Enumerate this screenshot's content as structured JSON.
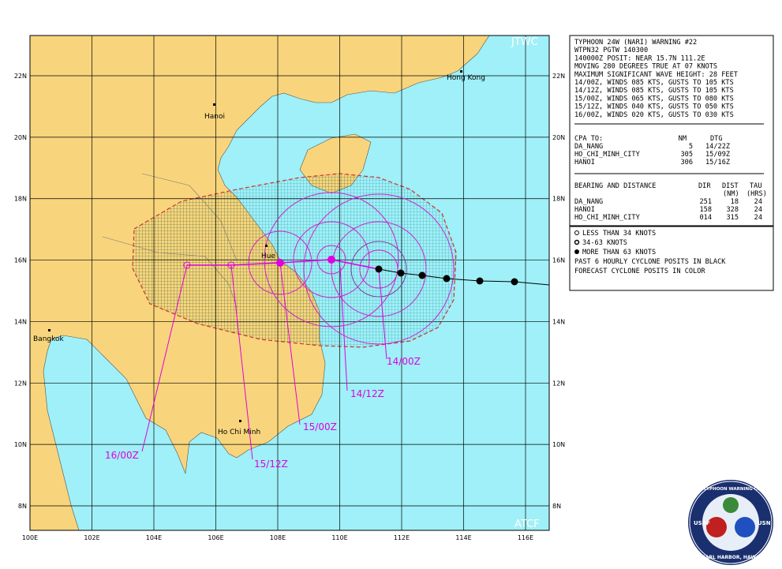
{
  "map": {
    "source_label": "JTWC",
    "model_label": "ATCF",
    "lat_labels": [
      "22N",
      "20N",
      "18N",
      "16N",
      "14N",
      "12N",
      "10N",
      "8N"
    ],
    "lon_labels": [
      "100E",
      "102E",
      "104E",
      "106E",
      "108E",
      "110E",
      "112E",
      "114E",
      "116E"
    ],
    "cities": {
      "hong_kong": "Hong Kong",
      "hanoi": "Hanoi",
      "hue": "Hue",
      "bangkok": "Bangkok",
      "ho_chi_minh": "Ho Chi Minh"
    },
    "forecast_labels": [
      "14/00Z",
      "14/12Z",
      "15/00Z",
      "15/12Z",
      "16/00Z"
    ]
  },
  "warning": {
    "lines": [
      "TYPHOON 24W (NARI) WARNING #22",
      "WTPN32 PGTW 140300",
      "140000Z POSIT: NEAR 15.7N 111.2E",
      "MOVING 280 DEGREES TRUE AT 07 KNOTS",
      "MAXIMUM SIGNIFICANT WAVE HEIGHT: 28 FEET",
      "14/00Z, WINDS 085 KTS, GUSTS TO 105 KTS",
      "14/12Z, WINDS 085 KTS, GUSTS TO 105 KTS",
      "15/00Z, WINDS 065 KTS, GUSTS TO 080 KTS",
      "15/12Z, WINDS 040 KTS, GUSTS TO 050 KTS",
      "16/00Z, WINDS 020 KTS, GUSTS TO 030 KTS"
    ],
    "cpa": {
      "header": [
        "CPA TO:",
        "NM",
        "DTG"
      ],
      "rows": [
        [
          "DA_NANG",
          "5",
          "14/22Z"
        ],
        [
          "HO_CHI_MINH_CITY",
          "305",
          "15/09Z"
        ],
        [
          "HANOI",
          "306",
          "15/16Z"
        ]
      ]
    },
    "bearing": {
      "header": [
        "BEARING AND DISTANCE",
        "DIR",
        "DIST",
        "TAU"
      ],
      "subheader": [
        "(NM)",
        "(HRS)"
      ],
      "rows": [
        [
          "DA_NANG",
          "251",
          "18",
          "24"
        ],
        [
          "HANOI",
          "158",
          "328",
          "24"
        ],
        [
          "HO_CHI_MINH_CITY",
          "014",
          "315",
          "24"
        ]
      ]
    }
  },
  "legend": [
    "LESS THAN 34 KNOTS",
    "34-63 KNOTS",
    "MORE THAN 63 KNOTS",
    "PAST 6 HOURLY CYCLONE POSITS IN BLACK",
    "FORECAST CYCLONE POSITS IN COLOR"
  ],
  "seal": {
    "top": "JOINT TYPHOON WARNING CENTER",
    "left": "USAF",
    "right": "USN",
    "bottom": "PEARL HARBOR, HAWAII"
  }
}
